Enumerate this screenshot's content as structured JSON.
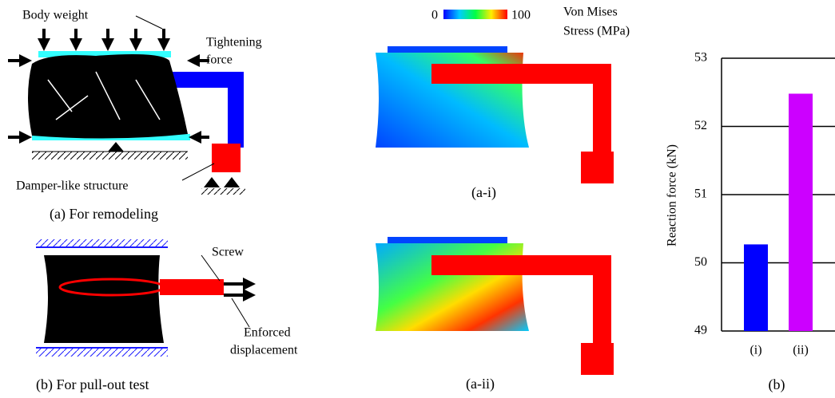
{
  "panel_a": {
    "top_label": "Body weight",
    "side_label": [
      "Tightening",
      "force"
    ],
    "bottom_label": "Damper-like structure",
    "caption": "(a) For remodeling"
  },
  "panel_b": {
    "screw_label": "Screw",
    "disp_label": [
      "Enforced",
      "displacement"
    ],
    "caption": "(b) For pull-out test"
  },
  "colorbar": {
    "min_label": "0",
    "max_label": "100",
    "title": [
      "Von Mises",
      "Stress (MPa)"
    ]
  },
  "result_captions": [
    "(a-i)",
    "(a-ii)"
  ],
  "chart_data": {
    "type": "bar",
    "title": "(b)",
    "y_label": "Reaction force (kN)",
    "categories": [
      "(i)",
      "(ii)"
    ],
    "values": [
      50.27,
      52.48
    ],
    "colors": [
      "#0000ff",
      "#cc00ff"
    ],
    "ylim": [
      49,
      53
    ],
    "yticks": [
      49,
      50,
      51,
      52,
      53
    ],
    "grid": true
  }
}
